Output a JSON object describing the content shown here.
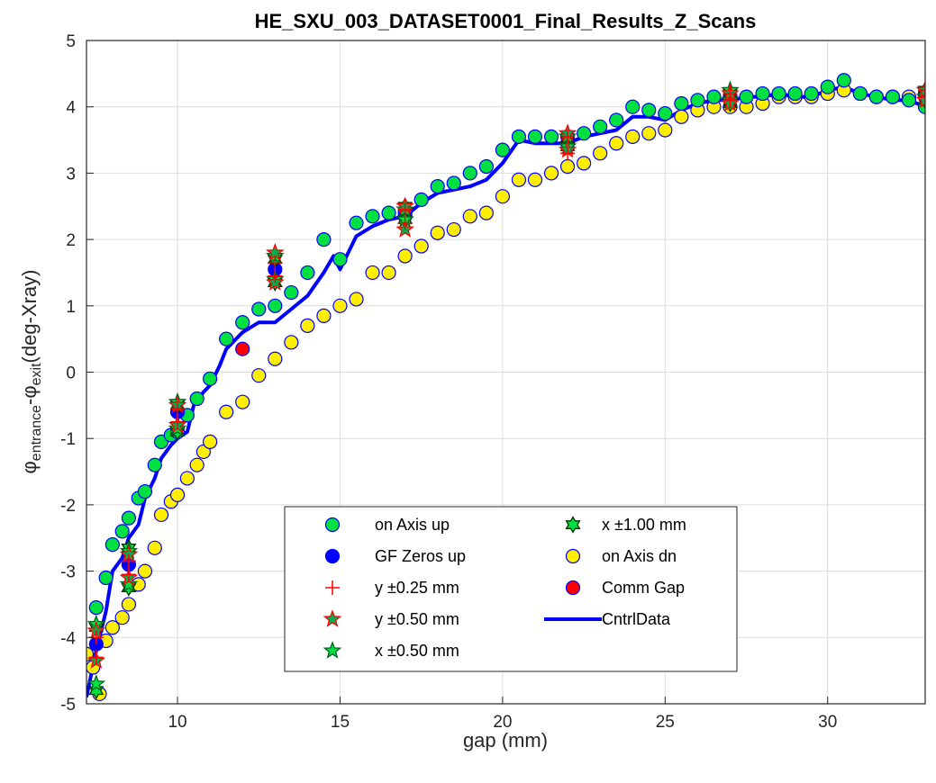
{
  "chart_data": {
    "type": "scatter",
    "title": "HE_SXU_003_DATASET0001_Final_Results_Z_Scans",
    "xlabel": "gap (mm)",
    "ylabel": {
      "phi_a": "φ",
      "sub_a": "entrance",
      "minus": "-",
      "phi_b": "φ",
      "sub_b": "exit",
      "unit": "(deg-Xray)"
    },
    "xlim": [
      7.2,
      33
    ],
    "ylim": [
      -5,
      5
    ],
    "xticks": [
      10,
      15,
      20,
      25,
      30
    ],
    "yticks": [
      -5,
      -4,
      -3,
      -2,
      -1,
      0,
      1,
      2,
      3,
      4,
      5
    ],
    "grid": true,
    "legend_position": "lower-center",
    "series": [
      {
        "name": "on Axis up",
        "marker": "circle",
        "color": "#00e040",
        "edge": "#0000ff",
        "x": [
          7.5,
          7.8,
          8.0,
          8.3,
          8.5,
          8.8,
          9.0,
          9.3,
          9.5,
          9.8,
          10.0,
          10.3,
          10.6,
          11.0,
          11.5,
          12.0,
          12.5,
          13.0,
          13.5,
          14.0,
          14.5,
          15.0,
          15.5,
          16.0,
          16.5,
          17.0,
          17.5,
          18.0,
          18.5,
          19.0,
          19.5,
          20.0,
          20.5,
          21.0,
          21.5,
          22.0,
          22.5,
          23.0,
          23.5,
          24.0,
          24.5,
          25.0,
          25.5,
          26.0,
          26.5,
          27.0,
          27.5,
          28.0,
          28.5,
          29.0,
          29.5,
          30.0,
          30.5,
          31.0,
          31.5,
          32.0,
          32.5,
          33.0
        ],
        "y": [
          -3.55,
          -3.1,
          -2.6,
          -2.4,
          -2.2,
          -1.9,
          -1.8,
          -1.4,
          -1.05,
          -0.95,
          -0.9,
          -0.65,
          -0.4,
          -0.1,
          0.5,
          0.75,
          0.95,
          1.0,
          1.2,
          1.5,
          2.0,
          1.7,
          2.25,
          2.35,
          2.4,
          2.4,
          2.6,
          2.8,
          2.85,
          3.0,
          3.1,
          3.35,
          3.55,
          3.55,
          3.55,
          3.55,
          3.6,
          3.7,
          3.8,
          4.0,
          3.95,
          3.9,
          4.05,
          4.1,
          4.15,
          4.15,
          4.15,
          4.2,
          4.2,
          4.2,
          4.2,
          4.3,
          4.4,
          4.2,
          4.15,
          4.15,
          4.1,
          4.0
        ]
      },
      {
        "name": "GF Zeros up",
        "marker": "circle",
        "color": "#0000ff",
        "edge": "#0000ff",
        "x": [
          7.5,
          8.5,
          10.0,
          13.0,
          17.0,
          22.0,
          27.0,
          33.0
        ],
        "y": [
          -4.1,
          -2.9,
          -0.6,
          1.55,
          2.35,
          3.45,
          4.15,
          4.2
        ]
      },
      {
        "name": "y ±0.25 mm",
        "marker": "plus",
        "color": "#ff0000",
        "x": [
          7.5,
          7.5,
          8.5,
          8.5,
          10.0,
          10.0,
          13.0,
          13.0,
          17.0,
          17.0,
          22.0,
          22.0,
          27.0,
          27.0,
          33.0,
          33.0
        ],
        "y": [
          -4.0,
          -4.3,
          -2.85,
          -3.05,
          -0.55,
          -0.75,
          1.65,
          1.45,
          2.45,
          2.25,
          3.55,
          3.3,
          4.2,
          4.1,
          4.25,
          4.15
        ]
      },
      {
        "name": "y ±0.50 mm",
        "marker": "star",
        "color": "#ff0000",
        "fill": "#00b050",
        "x": [
          7.5,
          7.5,
          8.5,
          8.5,
          10.0,
          10.0,
          13.0,
          13.0,
          17.0,
          17.0,
          22.0,
          22.0,
          27.0,
          27.0,
          33.0,
          33.0
        ],
        "y": [
          -3.9,
          -4.35,
          -2.75,
          -3.1,
          -0.5,
          -0.8,
          1.8,
          1.35,
          2.5,
          2.15,
          3.6,
          3.35,
          4.2,
          4.05,
          4.25,
          4.1
        ]
      },
      {
        "name": "x ±0.50 mm",
        "marker": "star",
        "color": "#006020",
        "fill": "#00e040",
        "x": [
          7.5,
          7.5,
          8.5,
          8.5,
          10.0,
          10.0,
          13.0,
          13.0,
          17.0,
          17.0,
          22.0,
          22.0,
          27.0,
          27.0,
          33.0,
          33.0
        ],
        "y": [
          -3.8,
          -4.7,
          -2.7,
          -3.2,
          -0.45,
          -0.85,
          1.75,
          1.4,
          2.45,
          2.3,
          3.55,
          3.4,
          4.25,
          4.1,
          4.25,
          4.15
        ]
      },
      {
        "name": "x ±1.00 mm",
        "marker": "hexagram",
        "color": "#003300",
        "fill": "#00e040",
        "x": [
          7.5,
          7.5,
          8.5,
          8.5,
          10.0,
          10.0,
          13.0,
          13.0,
          17.0,
          17.0,
          22.0,
          22.0,
          27.0,
          27.0,
          33.0,
          33.0
        ],
        "y": [
          -3.85,
          -4.8,
          -2.65,
          -3.25,
          -0.5,
          -0.9,
          1.7,
          1.35,
          2.5,
          2.3,
          3.5,
          3.4,
          4.2,
          4.05,
          4.25,
          4.1
        ]
      },
      {
        "name": "on Axis dn",
        "marker": "circle",
        "color": "#ffee00",
        "edge": "#0000ff",
        "x": [
          7.2,
          7.4,
          7.6,
          7.8,
          8.0,
          8.3,
          8.5,
          8.8,
          9.0,
          9.3,
          9.5,
          9.8,
          10.0,
          10.3,
          10.6,
          10.8,
          11.0,
          11.5,
          12.0,
          12.5,
          13.0,
          13.5,
          14.0,
          14.5,
          15.0,
          15.5,
          16.0,
          16.5,
          17.0,
          17.5,
          18.0,
          18.5,
          19.0,
          19.5,
          20.0,
          20.5,
          21.0,
          21.5,
          22.0,
          22.5,
          23.0,
          23.5,
          24.0,
          24.5,
          25.0,
          25.5,
          26.0,
          26.5,
          27.0,
          27.5,
          28.0,
          28.5,
          29.0,
          29.5,
          30.0,
          30.5,
          31.0,
          31.5,
          32.0,
          32.5,
          33.0
        ],
        "y": [
          -4.25,
          -4.45,
          -4.85,
          -4.05,
          -3.85,
          -3.7,
          -3.5,
          -3.2,
          -3.0,
          -2.65,
          -2.15,
          -1.95,
          -1.85,
          -1.6,
          -1.4,
          -1.2,
          -1.05,
          -0.6,
          -0.45,
          -0.05,
          0.2,
          0.45,
          0.7,
          0.85,
          1.0,
          1.1,
          1.5,
          1.5,
          1.75,
          1.9,
          2.1,
          2.15,
          2.35,
          2.4,
          2.65,
          2.9,
          2.9,
          3.0,
          3.1,
          3.15,
          3.3,
          3.45,
          3.55,
          3.6,
          3.65,
          3.85,
          3.95,
          4.0,
          4.0,
          4.0,
          4.05,
          4.15,
          4.15,
          4.15,
          4.2,
          4.25,
          4.2,
          4.15,
          4.15,
          4.15,
          4.15
        ]
      },
      {
        "name": "Comm Gap",
        "marker": "circle",
        "color": "#ff0000",
        "edge": "#0000ff",
        "x": [
          12.0
        ],
        "y": [
          0.35
        ]
      },
      {
        "name": "CntrlData",
        "marker": "line",
        "color": "#0000ff",
        "x": [
          7.2,
          7.5,
          7.8,
          8.0,
          8.3,
          8.5,
          8.8,
          9.0,
          9.3,
          9.5,
          9.8,
          10.0,
          10.3,
          10.5,
          10.8,
          11.0,
          11.3,
          11.5,
          11.8,
          12.0,
          12.5,
          13.0,
          13.5,
          14.0,
          14.5,
          14.8,
          15.0,
          15.5,
          16.0,
          16.5,
          17.0,
          17.5,
          18.0,
          18.5,
          19.0,
          19.5,
          20.0,
          20.5,
          21.0,
          21.5,
          22.0,
          22.5,
          23.0,
          23.5,
          24.0,
          24.5,
          25.0,
          25.5,
          26.0,
          26.5,
          27.0,
          27.5,
          28.0,
          28.5,
          29.0,
          29.5,
          30.0,
          30.5,
          31.0,
          31.5,
          32.0,
          32.5,
          33.0
        ],
        "y": [
          -4.9,
          -4.2,
          -3.6,
          -3.0,
          -2.8,
          -2.5,
          -2.3,
          -1.9,
          -1.6,
          -1.3,
          -1.1,
          -1.0,
          -0.9,
          -0.5,
          -0.3,
          -0.2,
          0.1,
          0.35,
          0.5,
          0.6,
          0.75,
          0.75,
          0.95,
          1.15,
          1.5,
          1.75,
          1.55,
          2.05,
          2.2,
          2.3,
          2.35,
          2.55,
          2.7,
          2.75,
          2.8,
          2.9,
          3.15,
          3.5,
          3.45,
          3.45,
          3.45,
          3.55,
          3.6,
          3.65,
          3.85,
          3.85,
          3.8,
          3.95,
          4.05,
          4.1,
          4.1,
          4.15,
          4.15,
          4.2,
          4.15,
          4.15,
          4.25,
          4.3,
          4.2,
          4.15,
          4.1,
          4.1,
          4.0
        ]
      }
    ]
  }
}
